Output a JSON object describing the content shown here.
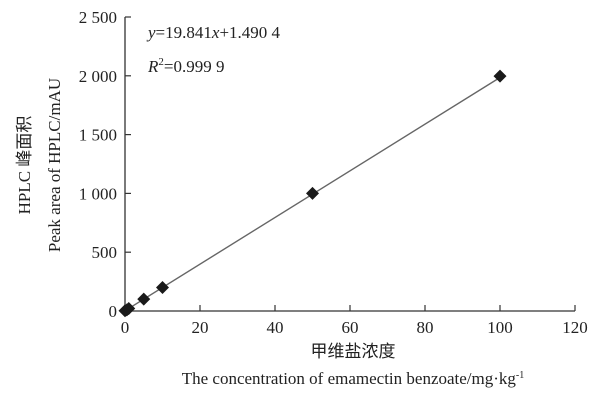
{
  "chart_data": {
    "type": "scatter",
    "x": [
      0,
      0.5,
      1,
      5,
      10,
      50,
      100
    ],
    "y": [
      2,
      10,
      21,
      101,
      200,
      1000,
      1997
    ],
    "xlim": [
      0,
      120
    ],
    "ylim": [
      0,
      2500
    ],
    "x_ticks": [
      0,
      20,
      40,
      60,
      80,
      100,
      120
    ],
    "y_ticks": [
      0,
      500,
      1000,
      1500,
      2000,
      2500
    ],
    "x_tick_labels": [
      "0",
      "20",
      "40",
      "60",
      "80",
      "100",
      "120"
    ],
    "y_tick_labels": [
      "0",
      "500",
      "1 000",
      "1 500",
      "2 000",
      "2 500"
    ],
    "fit": {
      "slope": 19.841,
      "intercept": 1.4904
    },
    "equation": {
      "y": "y",
      "eq_mid": "=19.841",
      "x": "x",
      "eq_tail": "+1.490 4"
    },
    "r2": {
      "r": "R",
      "sup": "2",
      "value": "=0.999 9"
    },
    "xlabel_cn": "甲维盐浓度",
    "xlabel_en": "The concentration of emamectin benzoate/mg·kg",
    "xlabel_en_sup": "-1",
    "ylabel_cn": "HPLC 峰面积",
    "ylabel_en": "Peak area of HPLC/mAU",
    "marker": "diamond",
    "grid": false,
    "legend": "none",
    "colors": {
      "marker": "#1a1a1a",
      "line": "#666666",
      "axis": "#333333"
    }
  }
}
